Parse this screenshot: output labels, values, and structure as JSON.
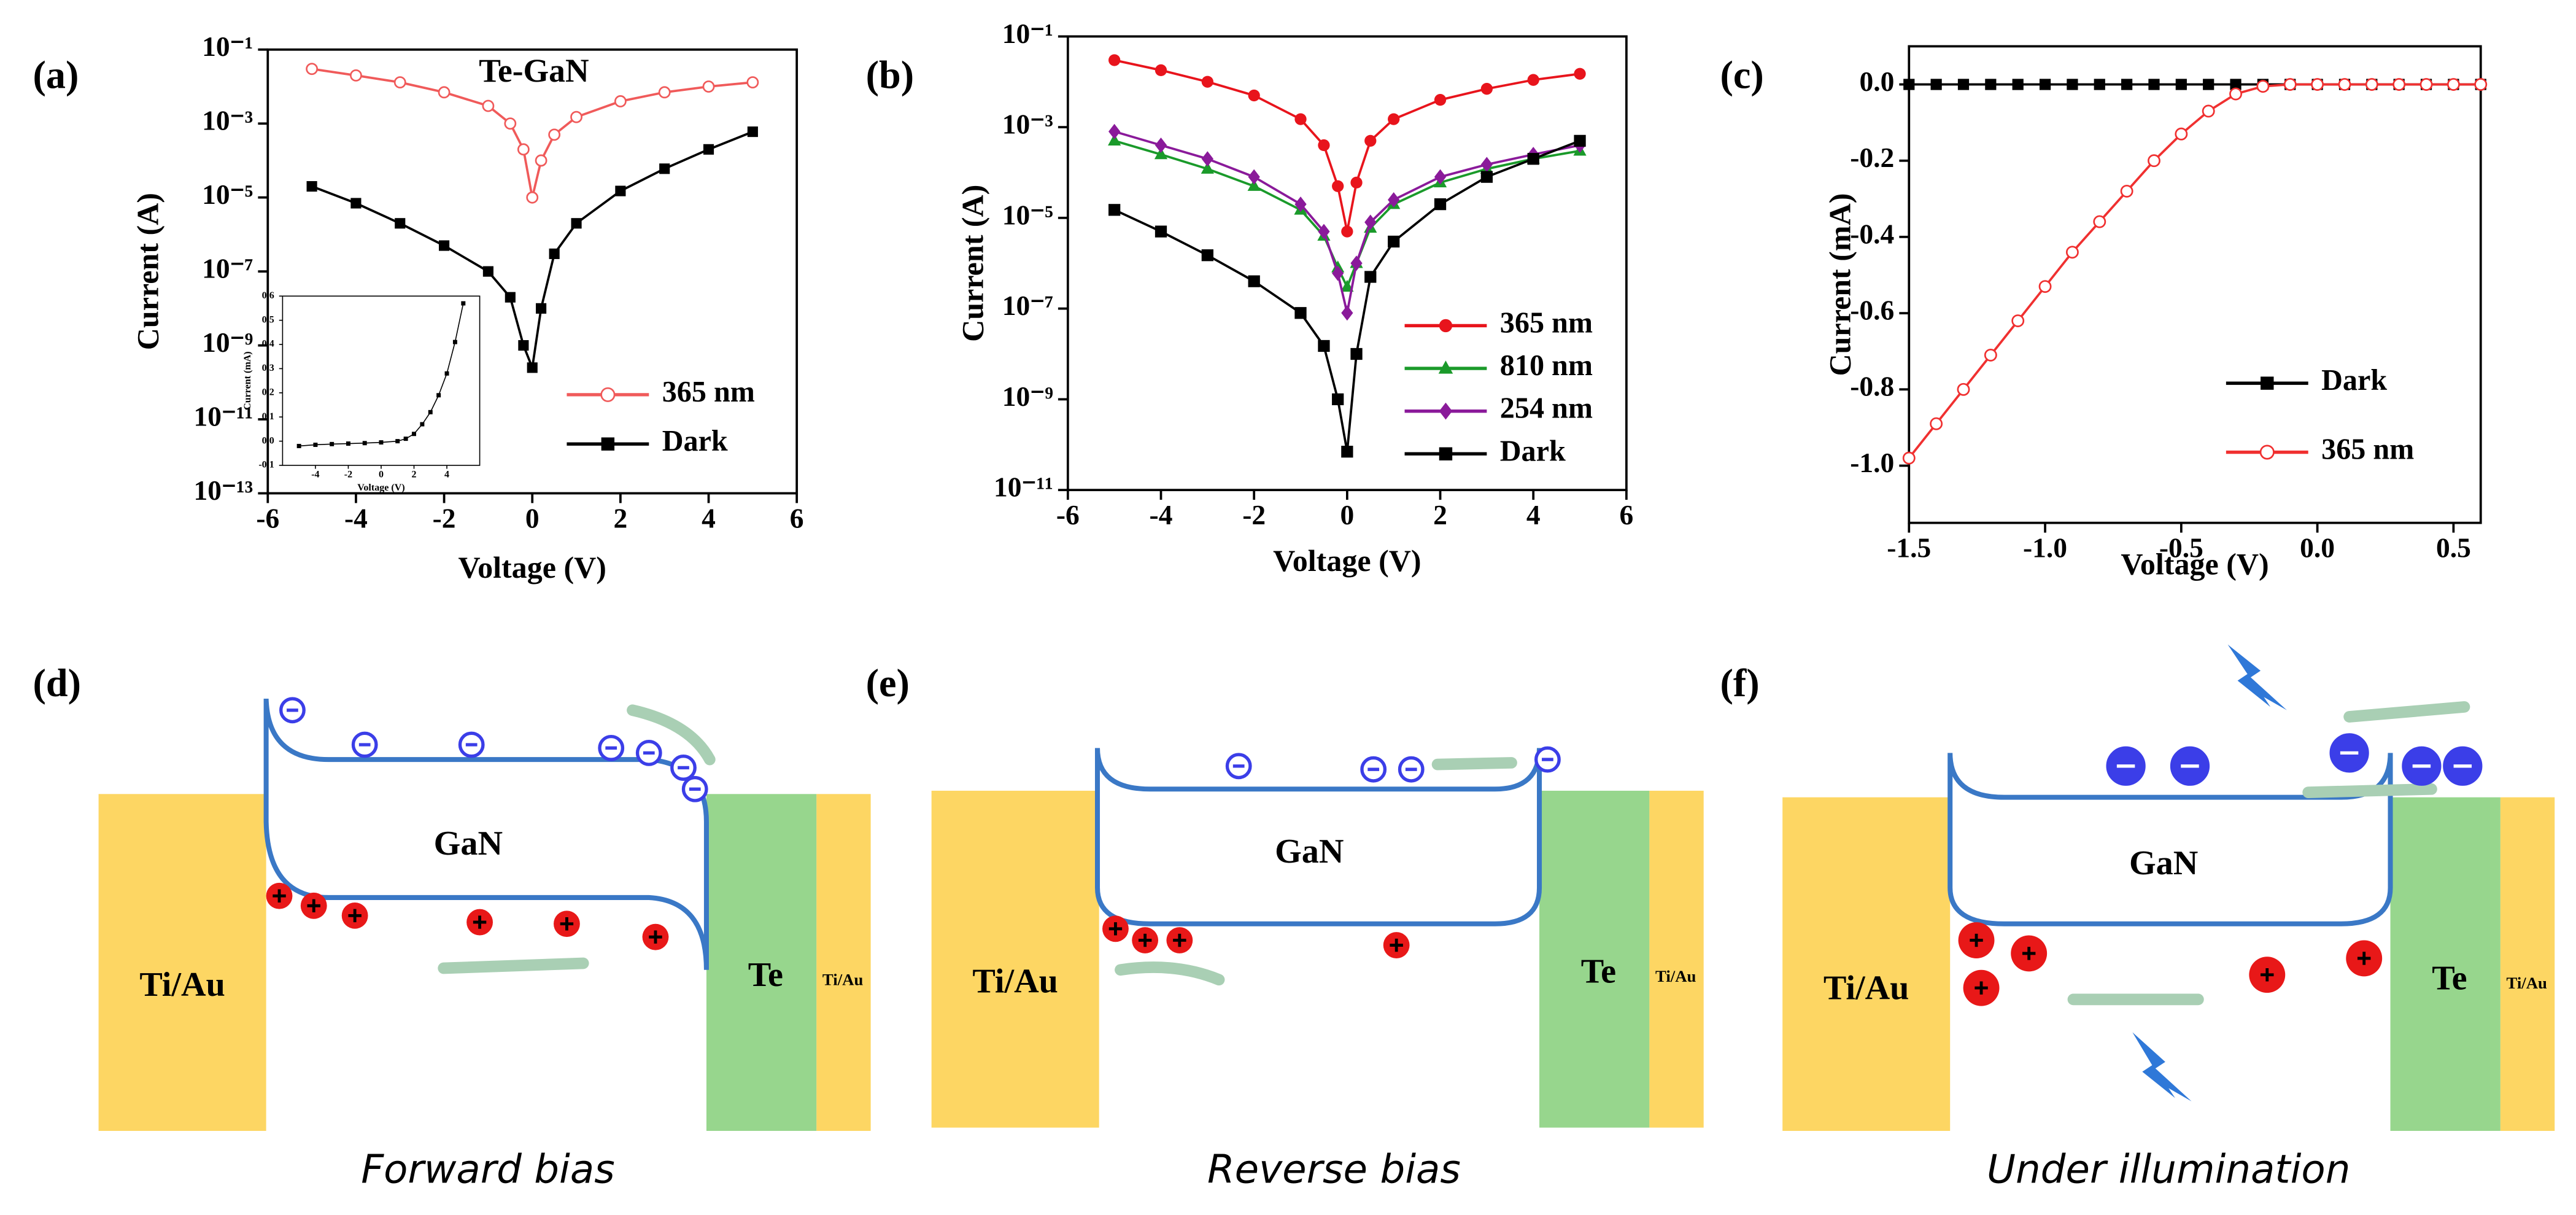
{
  "chart_data": [
    {
      "type": "line",
      "label": "(a)",
      "title": "Te-GaN",
      "x_label": "Voltage (V)",
      "y_label": "Current (A)",
      "log_y": true,
      "legend": "lower right",
      "xlim": [
        -6,
        6
      ],
      "xticks": [
        -6,
        -4,
        -2,
        0,
        2,
        4,
        6
      ],
      "ylim": [
        1e-13,
        0.1
      ],
      "yticks": [
        {
          "value": 1e-13,
          "label": "10⁻¹³"
        },
        {
          "value": 1e-11,
          "label": "10⁻¹¹"
        },
        {
          "value": 1e-09,
          "label": "10⁻⁹"
        },
        {
          "value": 1e-07,
          "label": "10⁻⁷"
        },
        {
          "value": 1e-05,
          "label": "10⁻⁵"
        },
        {
          "value": 0.001,
          "label": "10⁻³"
        },
        {
          "value": 0.1,
          "label": "10⁻¹"
        }
      ],
      "x": [
        -5,
        -4,
        -3,
        -2,
        -1,
        -0.5,
        -0.2,
        0,
        0.2,
        0.5,
        1,
        2,
        3,
        4,
        5
      ],
      "series": [
        {
          "name": "365 nm",
          "color": "#f05a5a",
          "marker": "open-circle",
          "values": [
            0.03,
            0.02,
            0.013,
            0.007,
            0.003,
            0.001,
            0.0002,
            1e-05,
            0.0001,
            0.0005,
            0.0015,
            0.004,
            0.007,
            0.01,
            0.013
          ]
        },
        {
          "name": "Dark",
          "color": "#000000",
          "marker": "square",
          "values": [
            2e-05,
            7e-06,
            2e-06,
            5e-07,
            1e-07,
            2e-08,
            1e-09,
            2.5e-10,
            1e-08,
            3e-07,
            2e-06,
            1.5e-05,
            6e-05,
            0.0002,
            0.0006
          ]
        }
      ]
    },
    {
      "type": "line",
      "label": "(b)",
      "x_label": "Voltage (V)",
      "y_label": "Current (A)",
      "log_y": true,
      "legend": "lower right",
      "xlim": [
        -6,
        6
      ],
      "xticks": [
        -6,
        -4,
        -2,
        0,
        2,
        4,
        6
      ],
      "ylim": [
        1e-11,
        0.1
      ],
      "yticks": [
        {
          "value": 1e-11,
          "label": "10⁻¹¹"
        },
        {
          "value": 1e-09,
          "label": "10⁻⁹"
        },
        {
          "value": 1e-07,
          "label": "10⁻⁷"
        },
        {
          "value": 1e-05,
          "label": "10⁻⁵"
        },
        {
          "value": 0.001,
          "label": "10⁻³"
        },
        {
          "value": 0.1,
          "label": "10⁻¹"
        }
      ],
      "x": [
        -5,
        -4,
        -3,
        -2,
        -1,
        -0.5,
        -0.2,
        0,
        0.2,
        0.5,
        1,
        2,
        3,
        4,
        5
      ],
      "series": [
        {
          "name": "365 nm",
          "color": "#e8141c",
          "marker": "circle",
          "values": [
            0.03,
            0.018,
            0.01,
            0.005,
            0.0015,
            0.0004,
            5e-05,
            5e-06,
            6e-05,
            0.0005,
            0.0015,
            0.004,
            0.007,
            0.011,
            0.015
          ]
        },
        {
          "name": "810 nm",
          "color": "#1a9a2a",
          "marker": "triangle",
          "values": [
            0.0005,
            0.00025,
            0.00012,
            5e-05,
            1.5e-05,
            4e-06,
            8e-07,
            3e-07,
            1e-06,
            6e-06,
            2e-05,
            6e-05,
            0.00012,
            0.0002,
            0.0003
          ]
        },
        {
          "name": "254 nm",
          "color": "#8a1a9a",
          "marker": "diamond",
          "values": [
            0.0008,
            0.0004,
            0.0002,
            8e-05,
            2e-05,
            5e-06,
            6e-07,
            8e-08,
            1e-06,
            8e-06,
            2.5e-05,
            8e-05,
            0.00015,
            0.00025,
            0.0004
          ]
        },
        {
          "name": "Dark",
          "color": "#000000",
          "marker": "square",
          "values": [
            1.5e-05,
            5e-06,
            1.5e-06,
            4e-07,
            8e-08,
            1.5e-08,
            1e-09,
            7e-11,
            1e-08,
            5e-07,
            3e-06,
            2e-05,
            8e-05,
            0.0002,
            0.0005
          ]
        }
      ]
    },
    {
      "type": "line",
      "label": "(c)",
      "x_label": "Voltage (V)",
      "y_label": "Current (mA)",
      "log_y": false,
      "legend": "lower right",
      "xlim": [
        -1.5,
        0.6
      ],
      "xticks": [
        -1.5,
        {
          "value": -1,
          "label": "-1.0"
        },
        -0.5,
        {
          "value": 0,
          "label": "0.0"
        },
        0.5
      ],
      "ylim": [
        -1.15,
        0.1
      ],
      "yticks": [
        {
          "value": 0,
          "label": "0.0"
        },
        -0.2,
        -0.4,
        -0.6,
        -0.8,
        {
          "value": -1,
          "label": "-1.0"
        }
      ],
      "x": [
        -1.5,
        -1.4,
        -1.3,
        -1.2,
        -1.1,
        -1,
        -0.9,
        -0.8,
        -0.7,
        -0.6,
        -0.5,
        -0.4,
        -0.3,
        -0.2,
        -0.1,
        0,
        0.1,
        0.2,
        0.3,
        0.4,
        0.5,
        0.6
      ],
      "series": [
        {
          "name": "Dark",
          "color": "#000000",
          "marker": "square",
          "values": [
            0,
            0,
            0,
            0,
            0,
            0,
            0,
            0,
            0,
            0,
            0,
            0,
            0,
            0,
            0,
            0,
            0,
            0,
            0,
            0,
            0,
            0
          ]
        },
        {
          "name": "365 nm",
          "color": "#f03030",
          "marker": "open-circle",
          "values": [
            -0.98,
            -0.89,
            -0.8,
            -0.71,
            -0.62,
            -0.53,
            -0.44,
            -0.36,
            -0.28,
            -0.2,
            -0.13,
            -0.07,
            -0.025,
            -0.005,
            0,
            0,
            0,
            0,
            0,
            0,
            0,
            0
          ]
        }
      ]
    },
    {
      "type": "line",
      "x_label": "Voltage (V)",
      "y_label": "Current (mA)",
      "log_y": false,
      "xlim": [
        -6,
        6
      ],
      "xticks": [
        -4,
        -2,
        0,
        2,
        4
      ],
      "ylim": [
        -0.1,
        0.6
      ],
      "yticks": [
        -0.1,
        {
          "value": 0,
          "label": "0.0"
        },
        0.1,
        0.2,
        0.3,
        0.4,
        0.5,
        0.6
      ],
      "x": [
        -5,
        -4,
        -3,
        -2,
        -1,
        0,
        1,
        1.5,
        2,
        2.5,
        3,
        3.5,
        4,
        4.5,
        5
      ],
      "series": [
        {
          "color": "#000000",
          "marker": "square",
          "values": [
            -0.02,
            -0.015,
            -0.012,
            -0.01,
            -0.008,
            -0.005,
            0,
            0.01,
            0.03,
            0.07,
            0.12,
            0.19,
            0.28,
            0.41,
            0.57
          ]
        }
      ]
    }
  ],
  "diagrams": [
    {
      "label": "(d)",
      "semiconductor": "GaN",
      "left_contact": "Ti/Au",
      "right_contact": "Te",
      "right_metal": "Ti/Au",
      "caption": "Forward bias"
    },
    {
      "label": "(e)",
      "semiconductor": "GaN",
      "left_contact": "Ti/Au",
      "right_contact": "Te",
      "right_metal": "Ti/Au",
      "caption": "Reverse bias"
    },
    {
      "label": "(f)",
      "semiconductor": "GaN",
      "left_contact": "Ti/Au",
      "right_contact": "Te",
      "right_metal": "Ti/Au",
      "caption": "Under illumination"
    }
  ]
}
